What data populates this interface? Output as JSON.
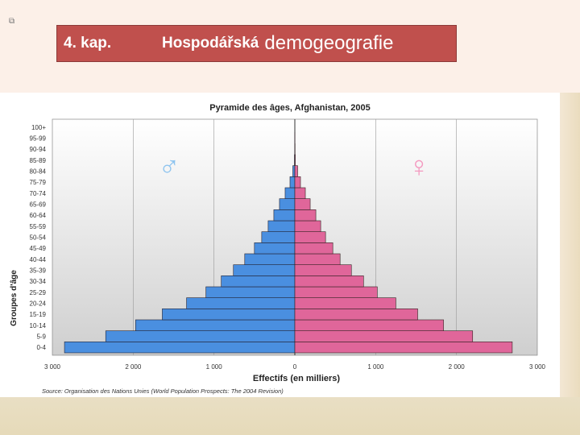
{
  "slide": {
    "icon": "slide-icon",
    "title_number": "4. kap.",
    "title_bold": "Hospodářská",
    "title_normal": "demogeografie"
  },
  "colors": {
    "male": "#4a8fe0",
    "female": "#e0669a",
    "title_bg": "#c0504d",
    "male_symbol": "#8ec4ef",
    "female_symbol": "#f49ac0"
  },
  "chart_data": {
    "type": "bar",
    "orientation": "horizontal-pyramid",
    "title": "Pyramide des âges, Afghanistan, 2005",
    "xlabel": "Effectifs (en milliers)",
    "ylabel": "Groupes d'âge",
    "source": "Source: Organisation des Nations Unies (World Population Prospects: The 2004 Revision)",
    "xlim": [
      -3000,
      3000
    ],
    "xticks": [
      "3 000",
      "2 000",
      "1 000",
      "0",
      "1 000",
      "2 000",
      "3 000"
    ],
    "grid": true,
    "symbols": {
      "male": "♂",
      "female": "♀"
    },
    "categories": [
      "0-4",
      "5-9",
      "10-14",
      "15-19",
      "20-24",
      "25-29",
      "30-34",
      "35-39",
      "40-44",
      "45-49",
      "50-54",
      "55-59",
      "60-64",
      "65-69",
      "70-74",
      "75-79",
      "80-84",
      "85-89",
      "90-94",
      "95-99",
      "100+"
    ],
    "series": [
      {
        "values": [
          2850,
          2340,
          1970,
          1640,
          1340,
          1100,
          910,
          760,
          620,
          500,
          410,
          330,
          260,
          190,
          120,
          60,
          25,
          5,
          2,
          1,
          0
        ]
      },
      {
        "values": [
          2690,
          2200,
          1840,
          1520,
          1250,
          1020,
          850,
          700,
          560,
          470,
          380,
          320,
          260,
          190,
          130,
          70,
          35,
          6,
          3,
          1,
          0
        ]
      }
    ]
  }
}
